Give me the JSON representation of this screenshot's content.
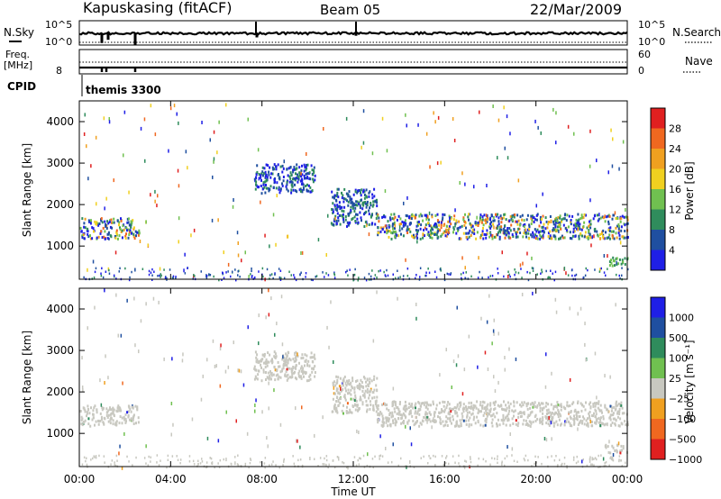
{
  "header": {
    "station": "Kapuskasing (fitACF)",
    "beam": "Beam 05",
    "date": "22/Mar/2009"
  },
  "top_panel": {
    "left_label": "N.Sky",
    "left_ticks": [
      "10^5",
      "10^0"
    ],
    "right_ticks": [
      "10^5",
      "10^0"
    ],
    "right_label": "N.Search"
  },
  "freq_panel": {
    "left_label_1": "Freq.",
    "left_label_2": "[MHz]",
    "left_ticks": [
      "8"
    ],
    "right_ticks": [
      "60",
      "0"
    ],
    "right_label": "Nave",
    "cpid_label": "CPID",
    "cpid_text": "themis 3300"
  },
  "chart_data": [
    {
      "type": "heatmap",
      "title": "",
      "xlabel": "Time UT",
      "ylabel": "Slant Range [km]",
      "xlim": [
        0,
        24
      ],
      "ylim": [
        200,
        4500
      ],
      "xticks": [
        "00:00",
        "04:00",
        "08:00",
        "12:00",
        "16:00",
        "20:00",
        "00:00"
      ],
      "yticks": [
        1000,
        2000,
        3000,
        4000
      ],
      "colorbar": {
        "label": "Power [dB]",
        "ticks": [
          "4",
          "8",
          "12",
          "16",
          "20",
          "24",
          "28"
        ],
        "colors": [
          "#1f1fe6",
          "#1f4fa0",
          "#2f8c5c",
          "#70c050",
          "#f0d020",
          "#f0a020",
          "#f06820",
          "#e02020"
        ]
      },
      "bands": [
        {
          "t0": 0.0,
          "t1": 2.6,
          "r0": 1200,
          "r1": 1700,
          "level": "mixed"
        },
        {
          "t0": 7.6,
          "t1": 10.3,
          "r0": 2300,
          "r1": 3000,
          "level": "low"
        },
        {
          "t0": 11.0,
          "t1": 13.0,
          "r0": 1500,
          "r1": 2400,
          "level": "low"
        },
        {
          "t0": 13.0,
          "t1": 24.0,
          "r0": 1200,
          "r1": 1800,
          "level": "mixed"
        },
        {
          "t0": 23.0,
          "t1": 24.0,
          "r0": 550,
          "r1": 750,
          "level": "mid"
        }
      ]
    },
    {
      "type": "heatmap",
      "title": "",
      "xlabel": "Time UT",
      "ylabel": "Slant Range [km]",
      "xlim": [
        0,
        24
      ],
      "ylim": [
        200,
        4500
      ],
      "xticks": [
        "00:00",
        "04:00",
        "08:00",
        "12:00",
        "16:00",
        "20:00",
        "00:00"
      ],
      "yticks": [
        1000,
        2000,
        3000,
        4000
      ],
      "colorbar": {
        "label": "Velocity [m s⁻¹]",
        "ticks": [
          "1000",
          "500",
          "100",
          "25",
          "−25",
          "−100",
          "−500",
          "−1000"
        ],
        "colors": [
          "#1f1fe6",
          "#1f4fa0",
          "#2f8c5c",
          "#70c050",
          "#c8c8c0",
          "#f0a020",
          "#f06820",
          "#e02020"
        ]
      },
      "bands": [
        {
          "t0": 0.0,
          "t1": 2.6,
          "r0": 1200,
          "r1": 1700,
          "level": "ground"
        },
        {
          "t0": 7.6,
          "t1": 10.3,
          "r0": 2300,
          "r1": 3000,
          "level": "ground"
        },
        {
          "t0": 11.0,
          "t1": 13.0,
          "r0": 1500,
          "r1": 2400,
          "level": "ground"
        },
        {
          "t0": 13.0,
          "t1": 24.0,
          "r0": 1200,
          "r1": 1800,
          "level": "ground"
        },
        {
          "t0": 23.0,
          "t1": 24.0,
          "r0": 550,
          "r1": 750,
          "level": "ground"
        }
      ]
    }
  ]
}
